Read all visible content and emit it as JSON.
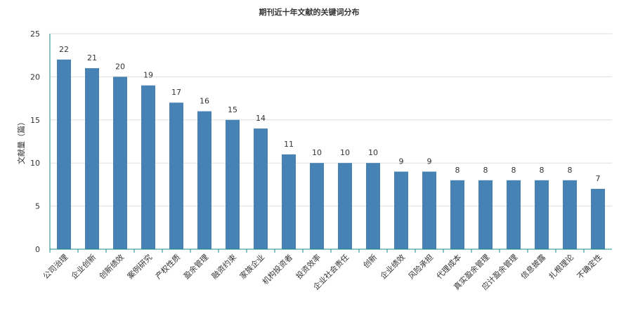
{
  "chart_data": {
    "type": "bar",
    "title": "期刊近十年文献的关键词分布",
    "xlabel": "",
    "ylabel": "文献量（篇）",
    "ylim": [
      0,
      25
    ],
    "yticks": [
      0,
      5,
      10,
      15,
      20,
      25
    ],
    "grid": true,
    "categories": [
      "公司治理",
      "企业创新",
      "创新绩效",
      "案例研究",
      "产权性质",
      "盈余管理",
      "融资约束",
      "家族企业",
      "机构投资者",
      "投资效率",
      "企业社会责任",
      "创新",
      "企业绩效",
      "风险承担",
      "代理成本",
      "真实盈余管理",
      "应计盈余管理",
      "信息披露",
      "扎根理论",
      "不确定性"
    ],
    "values": [
      22,
      21,
      20,
      19,
      17,
      16,
      15,
      14,
      11,
      10,
      10,
      10,
      9,
      9,
      8,
      8,
      8,
      8,
      8,
      7
    ],
    "colors": {
      "bar": "#4682b4",
      "axis": "#1a8a8a",
      "grid": "#dddddd"
    }
  }
}
